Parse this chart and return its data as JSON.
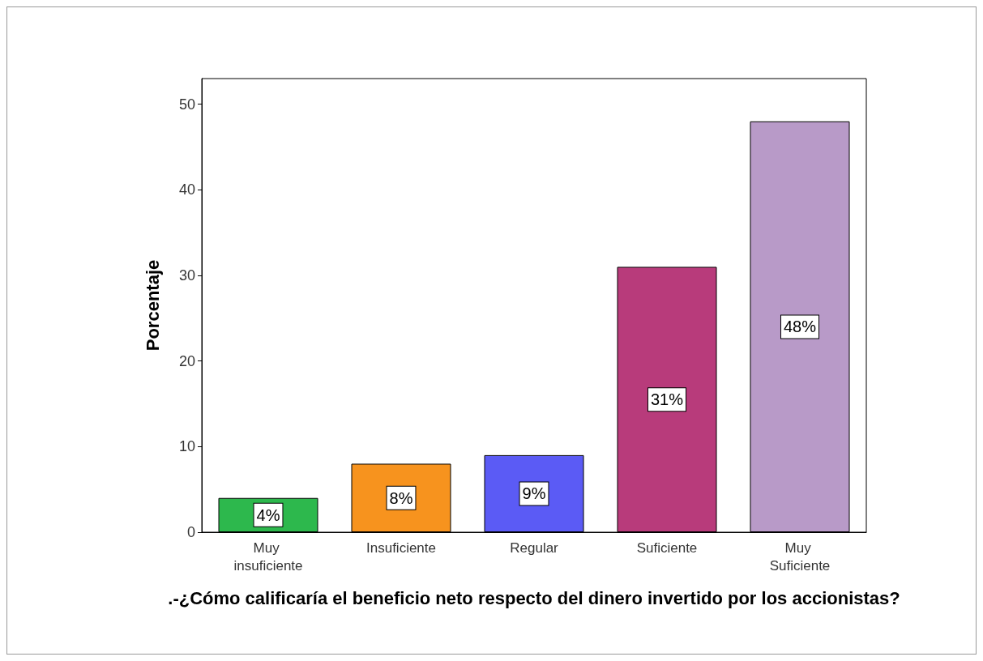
{
  "chart_data": {
    "type": "bar",
    "categories": [
      "Muy insuficiente",
      "Insuficiente",
      "Regular",
      "Suficiente",
      "Muy Suficiente"
    ],
    "values": [
      4,
      8,
      9,
      31,
      48
    ],
    "colors": [
      "#2db84d",
      "#f7931e",
      "#5b5bf5",
      "#b83b7b",
      "#b89ac8"
    ],
    "value_labels": [
      "4%",
      "8%",
      "9%",
      "31%",
      "48%"
    ],
    "xlabel": ".-¿Cómo calificaría el beneficio neto respecto del dinero invertido por los accionistas?",
    "ylabel": "Porcentaje",
    "ylim": [
      0,
      53
    ],
    "yticks": [
      0,
      10,
      20,
      30,
      40,
      50
    ],
    "grid": false
  }
}
